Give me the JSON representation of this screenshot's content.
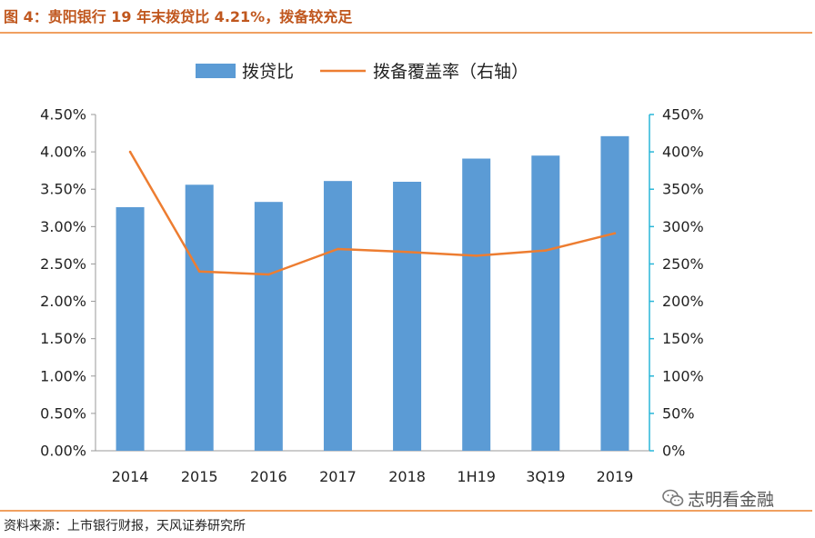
{
  "title": "图 4：贵阳银行 19 年末拨贷比 4.21%，拨备较充足",
  "source": "资料来源：上市银行财报，天风证券研究所",
  "watermark": "志明看金融",
  "colors": {
    "bar": "#5b9bd5",
    "line": "#ed7d31",
    "right_axis": "#29b6d8",
    "title": "#c0571e",
    "rule": "#f0a060"
  },
  "chart_data": {
    "type": "bar",
    "categories": [
      "2014",
      "2015",
      "2016",
      "2017",
      "2018",
      "1H19",
      "3Q19",
      "2019"
    ],
    "series": [
      {
        "name": "拨贷比",
        "type": "bar",
        "axis": "left",
        "values": [
          3.26,
          3.56,
          3.33,
          3.61,
          3.6,
          3.91,
          3.95,
          4.21
        ]
      },
      {
        "name": "拨备覆盖率（右轴）",
        "type": "line",
        "axis": "right",
        "values": [
          400,
          240,
          236,
          270,
          266,
          261,
          268,
          291
        ]
      }
    ],
    "y_left": {
      "min": 0,
      "max": 4.5,
      "step": 0.5,
      "ticks": [
        "0.00%",
        "0.50%",
        "1.00%",
        "1.50%",
        "2.00%",
        "2.50%",
        "3.00%",
        "3.50%",
        "4.00%",
        "4.50%"
      ]
    },
    "y_right": {
      "min": 0,
      "max": 450,
      "step": 50,
      "ticks": [
        "0%",
        "50%",
        "100%",
        "150%",
        "200%",
        "250%",
        "300%",
        "350%",
        "400%",
        "450%"
      ]
    },
    "legend_position": "top",
    "grid": false
  }
}
